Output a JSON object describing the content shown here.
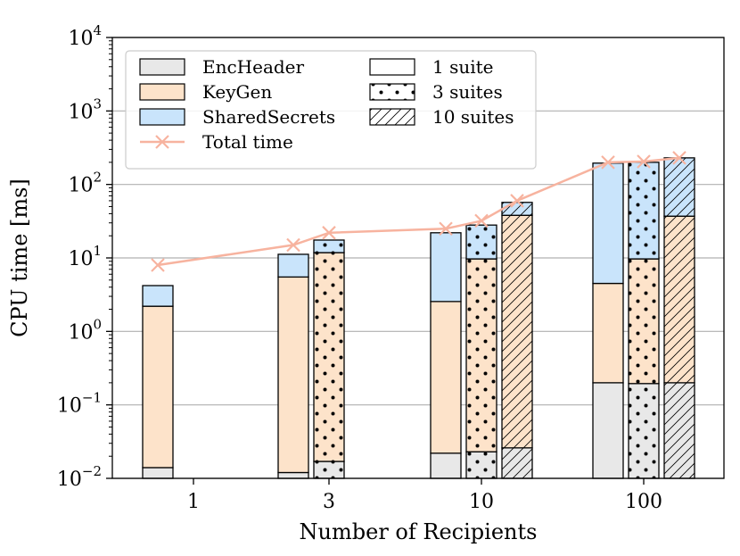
{
  "chart_data": {
    "type": "bar",
    "scale": "log",
    "xlabel": "Number of Recipients",
    "ylabel": "CPU time [ms]",
    "ylim": [
      0.01,
      10000
    ],
    "yticks": [
      {
        "value": 0.01,
        "base": "10",
        "exp": "−2"
      },
      {
        "value": 0.1,
        "base": "10",
        "exp": "−1"
      },
      {
        "value": 1,
        "base": "10",
        "exp": "0"
      },
      {
        "value": 10,
        "base": "10",
        "exp": "1"
      },
      {
        "value": 100,
        "base": "10",
        "exp": "2"
      },
      {
        "value": 1000,
        "base": "10",
        "exp": "3"
      },
      {
        "value": 10000,
        "base": "10",
        "exp": "4"
      }
    ],
    "categories": [
      "1",
      "3",
      "10",
      "100"
    ],
    "grid": "horizontal",
    "colors": {
      "EncHeader": "#e8e8e8",
      "KeyGen": "#fde3ca",
      "SharedSecrets": "#c9e4fb",
      "Total time": "#f7b39f"
    },
    "bars": [
      {
        "recipients": "1",
        "suites": 1,
        "EncHeader": 0.014,
        "KeyGen": 2.2,
        "SharedSecrets": 4.2
      },
      {
        "recipients": "3",
        "suites": 1,
        "EncHeader": 0.012,
        "KeyGen": 5.5,
        "SharedSecrets": 11.2
      },
      {
        "recipients": "3",
        "suites": 3,
        "EncHeader": 0.017,
        "KeyGen": 11.8,
        "SharedSecrets": 17.5
      },
      {
        "recipients": "10",
        "suites": 1,
        "EncHeader": 0.022,
        "KeyGen": 2.55,
        "SharedSecrets": 22.0
      },
      {
        "recipients": "10",
        "suites": 3,
        "EncHeader": 0.023,
        "KeyGen": 9.7,
        "SharedSecrets": 28.0
      },
      {
        "recipients": "10",
        "suites": 10,
        "EncHeader": 0.026,
        "KeyGen": 38.0,
        "SharedSecrets": 57.0
      },
      {
        "recipients": "100",
        "suites": 1,
        "EncHeader": 0.2,
        "KeyGen": 4.5,
        "SharedSecrets": 195.0
      },
      {
        "recipients": "100",
        "suites": 3,
        "EncHeader": 0.195,
        "KeyGen": 9.7,
        "SharedSecrets": 200.0
      },
      {
        "recipients": "100",
        "suites": 10,
        "EncHeader": 0.2,
        "KeyGen": 37.0,
        "SharedSecrets": 230.0
      }
    ],
    "total_time": [
      {
        "recipients": "1",
        "suites": 1,
        "value": 8.0
      },
      {
        "recipients": "3",
        "suites": 1,
        "value": 15.0
      },
      {
        "recipients": "3",
        "suites": 3,
        "value": 22.0
      },
      {
        "recipients": "10",
        "suites": 1,
        "value": 25.0
      },
      {
        "recipients": "10",
        "suites": 3,
        "value": 32.0
      },
      {
        "recipients": "10",
        "suites": 10,
        "value": 60.0
      },
      {
        "recipients": "100",
        "suites": 1,
        "value": 200.0
      },
      {
        "recipients": "100",
        "suites": 3,
        "value": 205.0
      },
      {
        "recipients": "100",
        "suites": 10,
        "value": 230.0
      }
    ],
    "legend": {
      "placement": "top-left",
      "components": [
        "EncHeader",
        "KeyGen",
        "SharedSecrets",
        "Total time"
      ],
      "suites": [
        {
          "suites": 1,
          "label": "1 suite"
        },
        {
          "suites": 3,
          "label": "3 suites"
        },
        {
          "suites": 10,
          "label": "10 suites"
        }
      ]
    }
  }
}
